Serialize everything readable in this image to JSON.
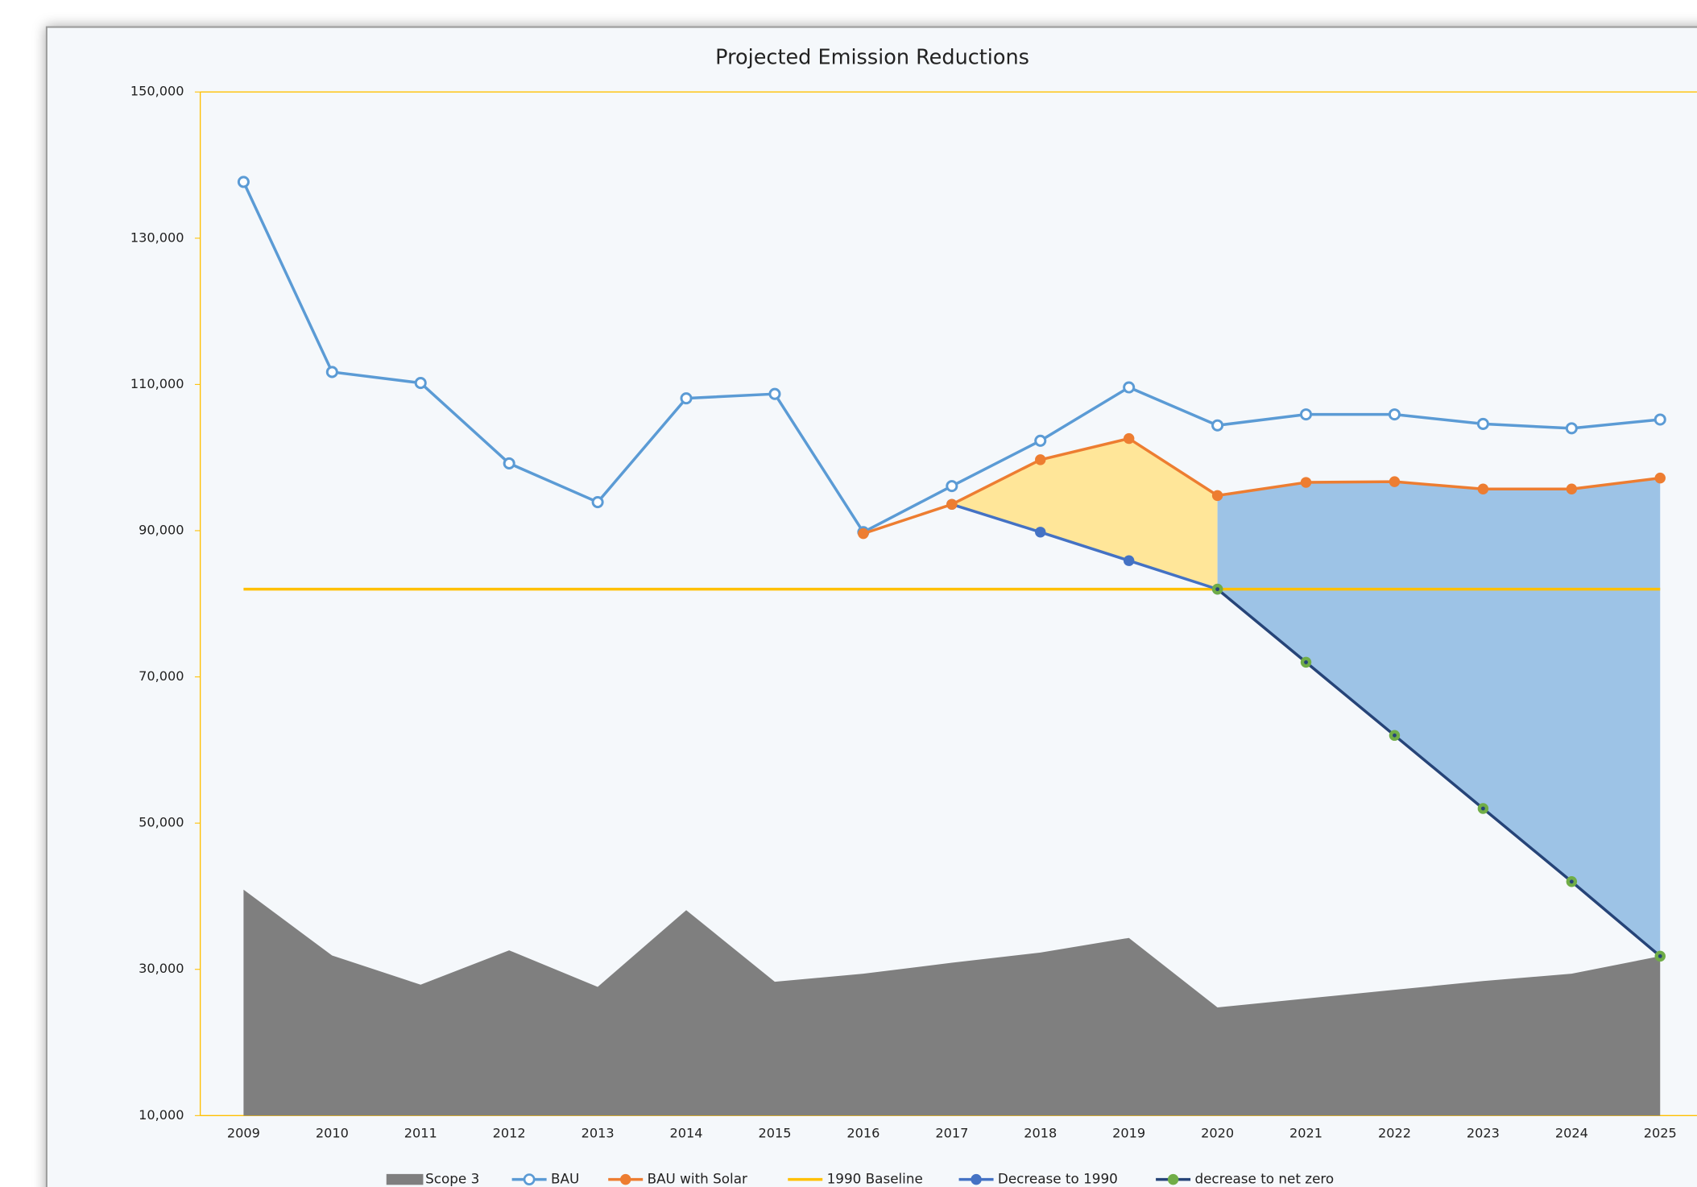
{
  "chart_data": {
    "type": "line",
    "title": "Projected Emission Reductions",
    "categories": [
      "2009",
      "2010",
      "2011",
      "2012",
      "2013",
      "2014",
      "2015",
      "2016",
      "2017",
      "2018",
      "2019",
      "2020",
      "2021",
      "2022",
      "2023",
      "2024",
      "2025"
    ],
    "ylim": [
      10000,
      150000
    ],
    "yticks": [
      {
        "value": 10000,
        "label": "10,000"
      },
      {
        "value": 30000,
        "label": "30,000"
      },
      {
        "value": 50000,
        "label": "50,000"
      },
      {
        "value": 70000,
        "label": "70,000"
      },
      {
        "value": 90000,
        "label": "90,000"
      },
      {
        "value": 110000,
        "label": "110,000"
      },
      {
        "value": 130000,
        "label": "130,000"
      },
      {
        "value": 150000,
        "label": "150,000"
      }
    ],
    "legend": "bottom",
    "series": [
      {
        "name": "Scope 3",
        "type": "area",
        "color": "#7f7f7f",
        "values": [
          40900,
          31900,
          27900,
          32600,
          27600,
          38100,
          28300,
          29400,
          30900,
          32300,
          34300,
          24800,
          26000,
          27200,
          28400,
          29400,
          31800
        ]
      },
      {
        "name": "BAU",
        "type": "line",
        "color": "#5b9bd5",
        "marker": "hollow",
        "values": [
          137700,
          111700,
          110200,
          99200,
          93900,
          108100,
          108700,
          89800,
          96100,
          102300,
          109600,
          104400,
          105900,
          105900,
          104600,
          104000,
          105200
        ]
      },
      {
        "name": "BAU with Solar",
        "type": "line",
        "color": "#ed7d31",
        "marker": "filled",
        "values": [
          null,
          null,
          null,
          null,
          null,
          null,
          null,
          89600,
          93600,
          99700,
          102600,
          94800,
          96600,
          96700,
          95700,
          95700,
          97200
        ]
      },
      {
        "name": "1990 Baseline",
        "type": "line",
        "color": "#ffc000",
        "marker": "none",
        "values": [
          82000,
          82000,
          82000,
          82000,
          82000,
          82000,
          82000,
          82000,
          82000,
          82000,
          82000,
          82000,
          82000,
          82000,
          82000,
          82000,
          82000
        ]
      },
      {
        "name": "Decrease to 1990",
        "type": "line",
        "color": "#4472c4",
        "marker": "filled",
        "values": [
          null,
          null,
          null,
          null,
          null,
          null,
          null,
          null,
          93600,
          89800,
          85900,
          82000,
          null,
          null,
          null,
          null,
          null
        ]
      },
      {
        "name": "decrease to net zero",
        "type": "line",
        "color": "#264478",
        "marker": "green",
        "values": [
          null,
          null,
          null,
          null,
          null,
          null,
          null,
          null,
          null,
          null,
          null,
          82000,
          72000,
          62000,
          52000,
          42000,
          31800
        ]
      }
    ]
  }
}
